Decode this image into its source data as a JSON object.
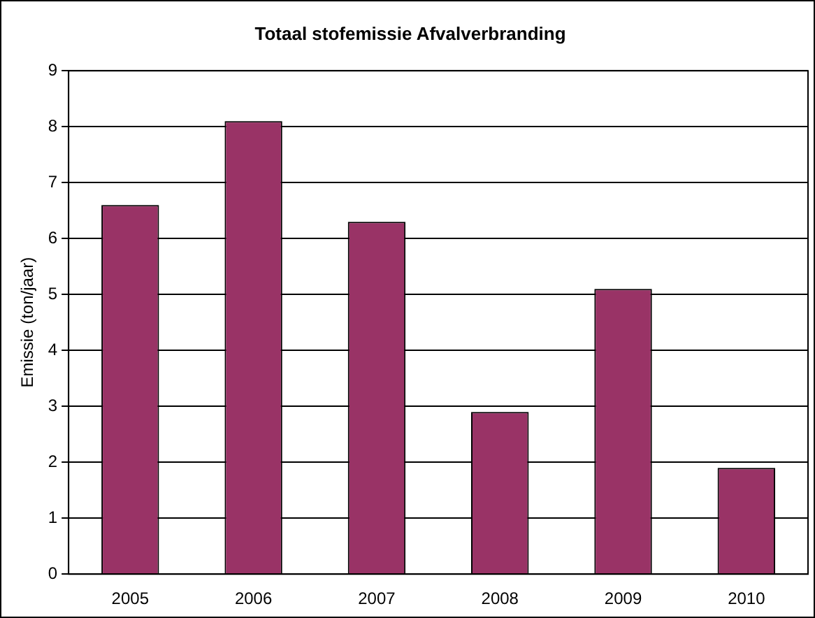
{
  "chart_data": {
    "type": "bar",
    "title": "Totaal stofemissie Afvalverbranding",
    "ylabel": "Emissie (ton/jaar)",
    "categories": [
      "2005",
      "2006",
      "2007",
      "2008",
      "2009",
      "2010"
    ],
    "values": [
      6.6,
      8.1,
      6.3,
      2.9,
      5.1,
      1.9
    ],
    "color": "#993366",
    "ylim": [
      0,
      9
    ],
    "yticks": [
      0,
      1,
      2,
      3,
      4,
      5,
      6,
      7,
      8,
      9
    ],
    "grid": "y",
    "legend": false
  }
}
